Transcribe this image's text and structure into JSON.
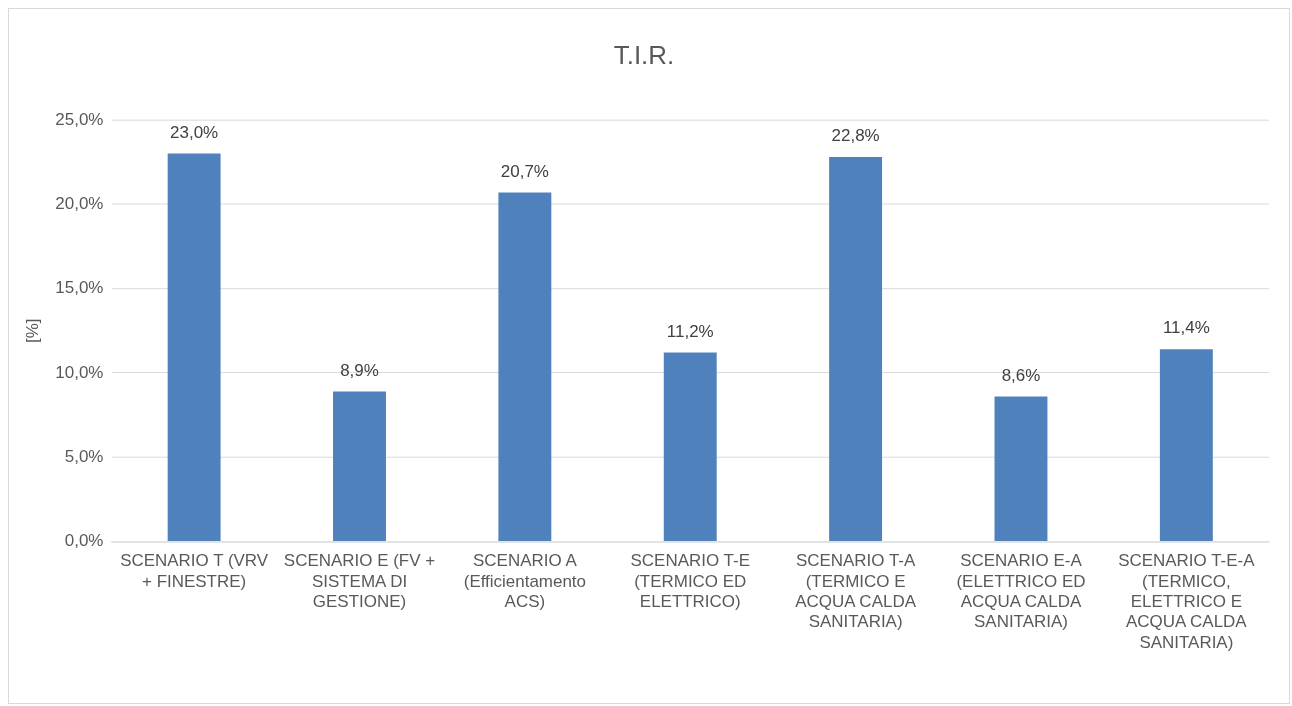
{
  "chart_data": {
    "type": "bar",
    "title": "T.I.R.",
    "ylabel": "[%]",
    "categories": [
      "SCENARIO T (VRV + FINESTRE)",
      "SCENARIO E (FV + SISTEMA DI GESTIONE)",
      "SCENARIO A (Efficientamento ACS)",
      "SCENARIO T-E (TERMICO ED ELETTRICO)",
      "SCENARIO T-A (TERMICO E ACQUA CALDA SANITARIA)",
      "SCENARIO E-A (ELETTRICO ED ACQUA CALDA SANITARIA)",
      "SCENARIO T-E-A (TERMICO, ELETTRICO E ACQUA CALDA SANITARIA)"
    ],
    "values": [
      23.0,
      8.9,
      20.7,
      11.2,
      22.8,
      8.6,
      11.4
    ],
    "value_labels": [
      "23,0%",
      "8,9%",
      "20,7%",
      "11,2%",
      "22,8%",
      "8,6%",
      "11,4%"
    ],
    "color": "#4f81bd",
    "ylim": [
      0,
      25
    ],
    "yticks": [
      {
        "value": 0,
        "label": "0,0%"
      },
      {
        "value": 5,
        "label": "5,0%"
      },
      {
        "value": 10,
        "label": "10,0%"
      },
      {
        "value": 15,
        "label": "15,0%"
      },
      {
        "value": 20,
        "label": "20,0%"
      },
      {
        "value": 25,
        "label": "25,0%"
      }
    ],
    "grid": "y",
    "legend": false
  }
}
